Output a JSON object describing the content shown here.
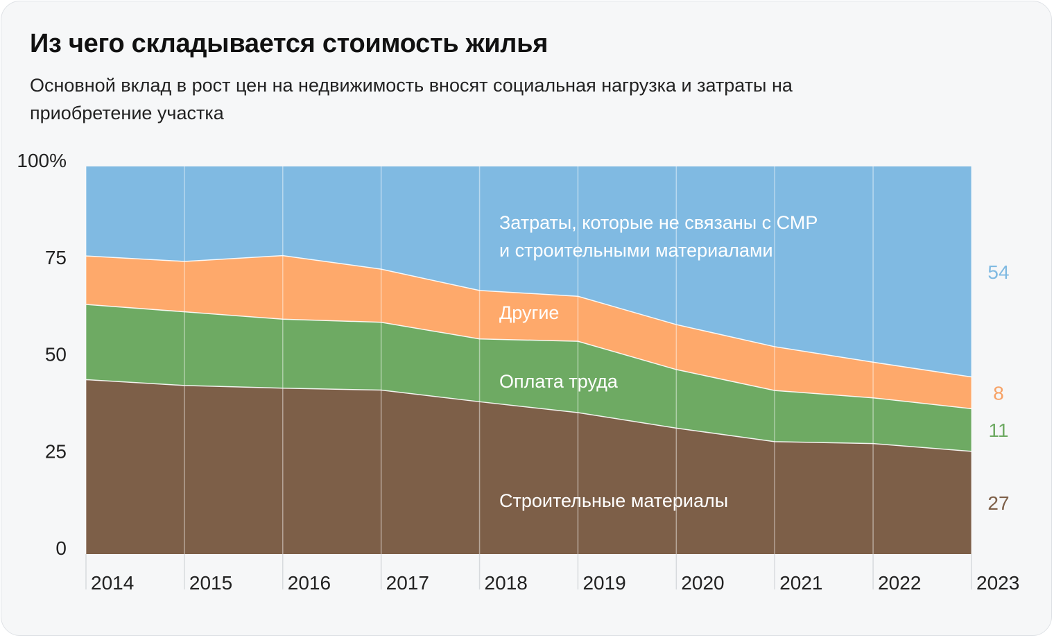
{
  "title": "Из чего складывается стоимость жилья",
  "subtitle": "Основной вклад в рост цен на недвижимость вносят социальная нагрузка и затраты на приобретение участка",
  "chart_data": {
    "type": "area",
    "stacked": true,
    "categories": [
      "2014",
      "2015",
      "2016",
      "2017",
      "2018",
      "2019",
      "2020",
      "2021",
      "2022",
      "2023"
    ],
    "ylim": [
      0,
      100
    ],
    "yticks": [
      0,
      25,
      50,
      75,
      100
    ],
    "ytick_labels": [
      "0",
      "25",
      "50",
      "75",
      "100%"
    ],
    "series": [
      {
        "name": "Строительные материалы",
        "color": "#7d5f48",
        "end_label": "27",
        "values": [
          45,
          43.5,
          42.8,
          42.3,
          39.3,
          36.5,
          32.5,
          29,
          28.5,
          26.5
        ]
      },
      {
        "name": "Оплата труда",
        "color": "#6eaa63",
        "end_label": "11",
        "values": [
          19.4,
          19,
          17.8,
          17.5,
          16.2,
          18.4,
          15.1,
          13.2,
          11.8,
          11
        ]
      },
      {
        "name": "Другие",
        "color": "#fea96b",
        "end_label": "8",
        "values": [
          12.5,
          13,
          16.4,
          13.7,
          12.5,
          11.6,
          11.6,
          11.3,
          9.2,
          8.2
        ]
      },
      {
        "name": "Затраты, которые не связаны с СМР и строительными материалами",
        "color": "#80bae2",
        "end_label": "54",
        "values": [
          23.1,
          24.5,
          23,
          26.5,
          32,
          33.5,
          40.8,
          46.5,
          50.5,
          54.3
        ]
      }
    ],
    "inline_labels": {
      "other_costs_line1": "Затраты, которые не связаны с СМР",
      "other_costs_line2": "и строительными материалами",
      "other": "Другие",
      "labor": "Оплата труда",
      "materials": "Строительные материалы"
    }
  }
}
